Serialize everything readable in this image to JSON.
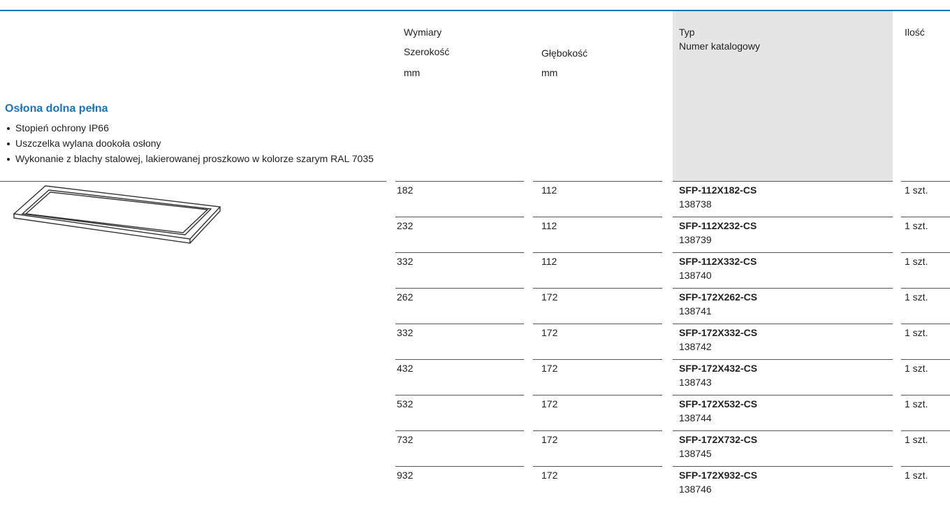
{
  "header": {
    "dimensions": "Wymiary",
    "width": "Szerokość",
    "width_unit": "mm",
    "depth": "Głębokość",
    "depth_unit": "mm",
    "type": "Typ",
    "catalog_number": "Numer katalogowy",
    "quantity": "Ilość"
  },
  "section": {
    "title": "Osłona dolna pełna",
    "bullets": [
      "Stopień ochrony IP66",
      "Uszczelka wylana dookoła osłony",
      "Wykonanie z blachy stalowej, lakierowanej proszkowo w kolorze szarym RAL 7035"
    ]
  },
  "table": {
    "rows": [
      [
        "182",
        "112",
        "SFP-112X182-CS",
        "138738",
        "1 szt."
      ],
      [
        "232",
        "112",
        "SFP-112X232-CS",
        "138739",
        "1 szt."
      ],
      [
        "332",
        "112",
        "SFP-112X332-CS",
        "138740",
        "1 szt."
      ],
      [
        "262",
        "172",
        "SFP-172X262-CS",
        "138741",
        "1 szt."
      ],
      [
        "332",
        "172",
        "SFP-172X332-CS",
        "138742",
        "1 szt."
      ],
      [
        "432",
        "172",
        "SFP-172X432-CS",
        "138743",
        "1 szt."
      ],
      [
        "532",
        "172",
        "SFP-172X532-CS",
        "138744",
        "1 szt."
      ],
      [
        "732",
        "172",
        "SFP-172X732-CS",
        "138745",
        "1 szt."
      ],
      [
        "932",
        "172",
        "SFP-172X932-CS",
        "138746",
        "1 szt."
      ]
    ]
  }
}
